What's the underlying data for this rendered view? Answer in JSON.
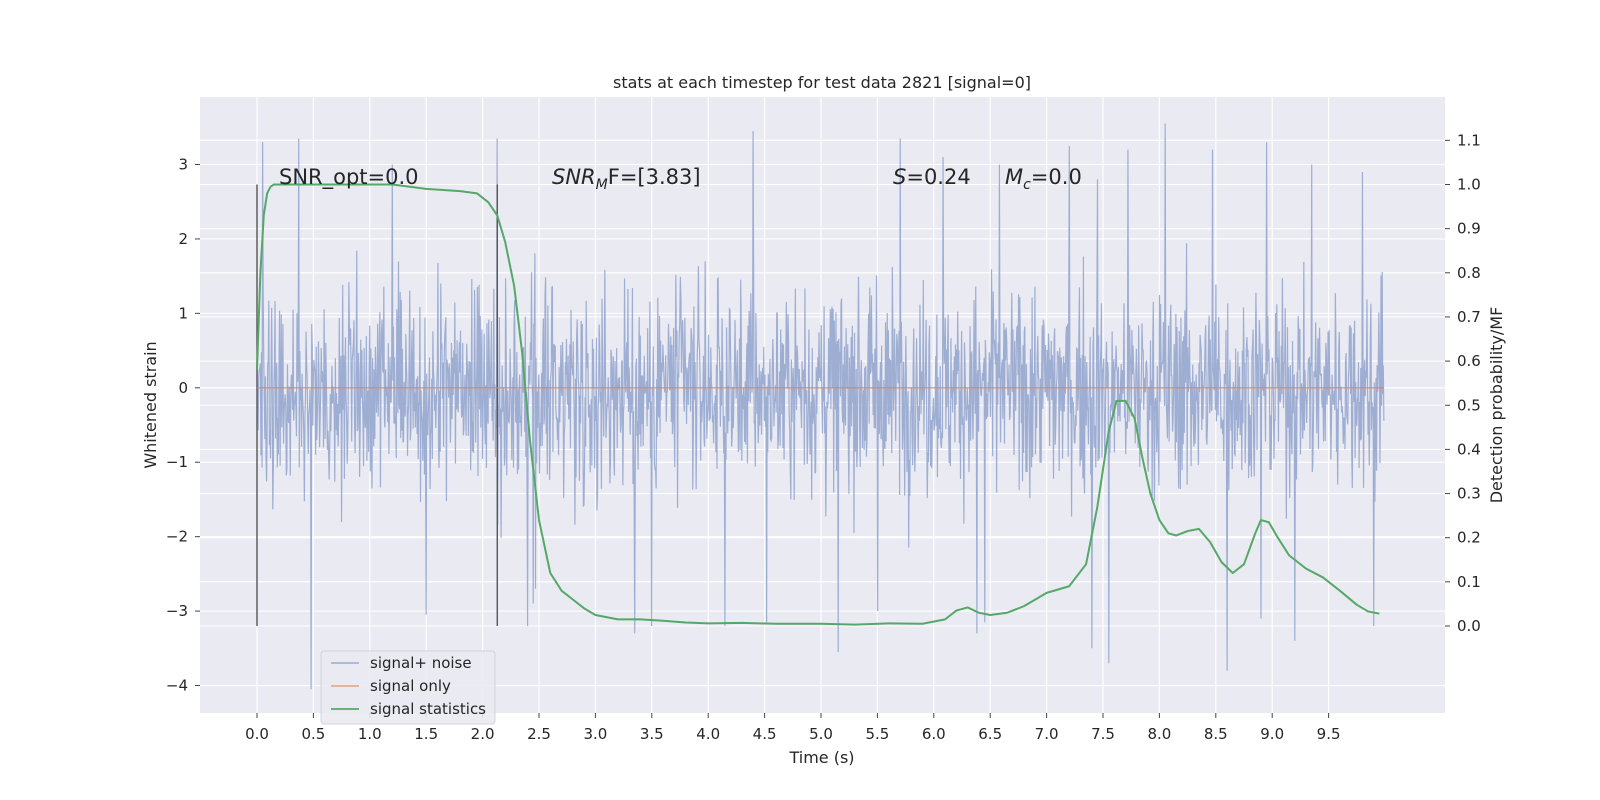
{
  "chart_data": {
    "type": "line",
    "title": "stats at each timestep for test data 2821 [signal=0]",
    "xlabel": "Time (s)",
    "ylabel": "Whitened strain",
    "ylabel_right": "Detection probability/MF",
    "xlim": [
      -0.5,
      10.5
    ],
    "ylim": [
      -4.5,
      3.9
    ],
    "ylim_right": [
      -0.2,
      1.2
    ],
    "xticks": [
      "0.0",
      "0.5",
      "1.0",
      "1.5",
      "2.0",
      "2.5",
      "3.0",
      "3.5",
      "4.0",
      "4.5",
      "5.0",
      "5.5",
      "6.0",
      "6.5",
      "7.0",
      "7.5",
      "8.0",
      "8.5",
      "9.0",
      "9.5"
    ],
    "yticks": [
      "3",
      "2",
      "1",
      "0",
      "−1",
      "−2",
      "−3",
      "−4"
    ],
    "yticks_right": [
      "1.1",
      "1.0",
      "0.9",
      "0.8",
      "0.7",
      "0.6",
      "0.5",
      "0.4",
      "0.3",
      "0.2",
      "0.1",
      "0.0"
    ],
    "grid": true,
    "legend_position": "lower-left",
    "colors": {
      "background": "#eaeaf2",
      "noise": "#9aabd1",
      "signal_only": "#dd8452",
      "statistics": "#55a868",
      "vlines": "#555555"
    },
    "annotations": {
      "snr_opt": "SNR_opt=0.0",
      "snr_mf_italic": "SNR",
      "snr_mf_sub": "M",
      "snr_mf_rest": "F=[3.83]",
      "s_italic": "S",
      "s_rest": "=0.24",
      "mc_italic": "M",
      "mc_sub": "c",
      "mc_rest": "=0.0"
    },
    "vertical_markers": [
      0.0,
      2.13
    ],
    "series": [
      {
        "name": "signal+ noise",
        "x_range": [
          0.0,
          9.99
        ],
        "typical_range": [
          -1.5,
          1.5
        ],
        "peaks_high": [
          [
            0.05,
            3.3
          ],
          [
            0.37,
            3.35
          ],
          [
            1.2,
            3.0
          ],
          [
            2.13,
            3.35
          ],
          [
            4.4,
            3.45
          ],
          [
            5.15,
            2.9
          ],
          [
            5.7,
            3.35
          ],
          [
            6.08,
            3.1
          ],
          [
            6.58,
            3.0
          ],
          [
            7.2,
            3.25
          ],
          [
            7.45,
            2.8
          ],
          [
            7.72,
            3.2
          ],
          [
            8.05,
            3.55
          ],
          [
            8.47,
            3.2
          ],
          [
            8.95,
            3.3
          ],
          [
            9.35,
            3.0
          ],
          [
            9.8,
            2.9
          ]
        ],
        "peaks_low": [
          [
            0.48,
            -4.05
          ],
          [
            1.5,
            -3.05
          ],
          [
            2.4,
            -3.2
          ],
          [
            2.47,
            -2.7
          ],
          [
            2.45,
            -2.9
          ],
          [
            3.35,
            -3.3
          ],
          [
            3.5,
            -3.2
          ],
          [
            4.15,
            -3.2
          ],
          [
            4.52,
            -3.15
          ],
          [
            5.15,
            -3.55
          ],
          [
            5.5,
            -3.0
          ],
          [
            6.38,
            -3.3
          ],
          [
            6.45,
            -3.15
          ],
          [
            7.4,
            -3.5
          ],
          [
            7.55,
            -3.7
          ],
          [
            8.6,
            -3.8
          ],
          [
            8.9,
            -3.1
          ],
          [
            9.2,
            -3.4
          ],
          [
            9.9,
            -3.2
          ]
        ]
      },
      {
        "name": "signal only",
        "x": [
          0.0,
          9.99
        ],
        "y": [
          0.0,
          0.0
        ]
      },
      {
        "name": "signal statistics",
        "axis": "right",
        "x": [
          0.0,
          0.03,
          0.06,
          0.09,
          0.12,
          0.15,
          0.25,
          0.5,
          0.9,
          1.2,
          1.5,
          1.8,
          1.95,
          2.05,
          2.13,
          2.2,
          2.28,
          2.35,
          2.42,
          2.5,
          2.6,
          2.7,
          2.8,
          2.9,
          3.0,
          3.2,
          3.4,
          3.6,
          3.8,
          4.0,
          4.3,
          4.6,
          5.0,
          5.3,
          5.6,
          5.9,
          6.1,
          6.2,
          6.3,
          6.4,
          6.5,
          6.65,
          6.8,
          7.0,
          7.2,
          7.35,
          7.45,
          7.55,
          7.62,
          7.7,
          7.78,
          7.85,
          7.92,
          8.0,
          8.08,
          8.15,
          8.25,
          8.35,
          8.45,
          8.55,
          8.65,
          8.75,
          8.85,
          8.9,
          8.97,
          9.05,
          9.15,
          9.3,
          9.45,
          9.6,
          9.75,
          9.85,
          9.95
        ],
        "y": [
          0.58,
          0.8,
          0.93,
          0.98,
          0.995,
          1.0,
          1.0,
          1.0,
          1.0,
          1.0,
          0.99,
          0.985,
          0.98,
          0.96,
          0.93,
          0.87,
          0.77,
          0.62,
          0.42,
          0.24,
          0.12,
          0.08,
          0.06,
          0.04,
          0.025,
          0.015,
          0.015,
          0.012,
          0.008,
          0.006,
          0.007,
          0.005,
          0.005,
          0.003,
          0.006,
          0.005,
          0.015,
          0.035,
          0.042,
          0.03,
          0.025,
          0.03,
          0.045,
          0.075,
          0.09,
          0.14,
          0.27,
          0.44,
          0.51,
          0.51,
          0.47,
          0.38,
          0.3,
          0.24,
          0.21,
          0.205,
          0.215,
          0.22,
          0.19,
          0.145,
          0.12,
          0.14,
          0.21,
          0.24,
          0.235,
          0.2,
          0.16,
          0.13,
          0.11,
          0.08,
          0.048,
          0.033,
          0.028
        ]
      }
    ]
  }
}
